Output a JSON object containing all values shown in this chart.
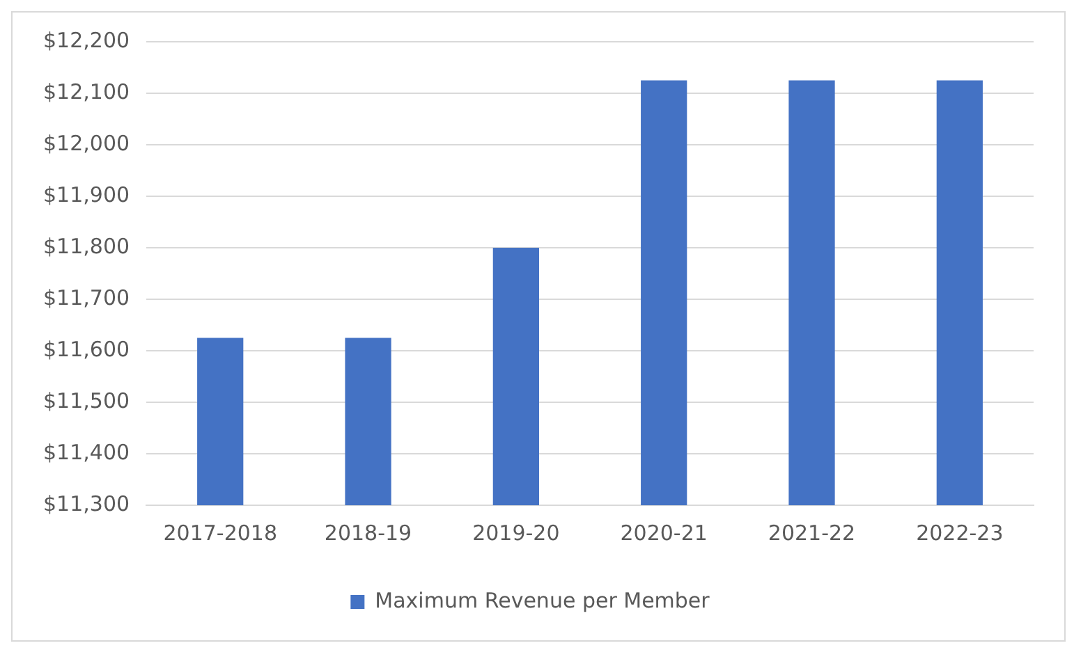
{
  "chart_data": {
    "type": "bar",
    "categories": [
      "2017-2018",
      "2018-19",
      "2019-20",
      "2020-21",
      "2021-22",
      "2022-23"
    ],
    "series": [
      {
        "name": "Maximum Revenue per Member",
        "color": "#4472c4",
        "values": [
          11625,
          11625,
          11800,
          12125,
          12125,
          12125
        ]
      }
    ],
    "ylim": [
      11300,
      12200
    ],
    "yticks": [
      {
        "value": 11300,
        "label": "$11,300"
      },
      {
        "value": 11400,
        "label": "$11,400"
      },
      {
        "value": 11500,
        "label": "$11,500"
      },
      {
        "value": 11600,
        "label": "$11,600"
      },
      {
        "value": 11700,
        "label": "$11,700"
      },
      {
        "value": 11800,
        "label": "$11,800"
      },
      {
        "value": 11900,
        "label": "$11,900"
      },
      {
        "value": 12000,
        "label": "$12,000"
      },
      {
        "value": 12100,
        "label": "$12,100"
      },
      {
        "value": 12200,
        "label": "$12,200"
      }
    ],
    "grid": "y",
    "legend": "bottom"
  }
}
